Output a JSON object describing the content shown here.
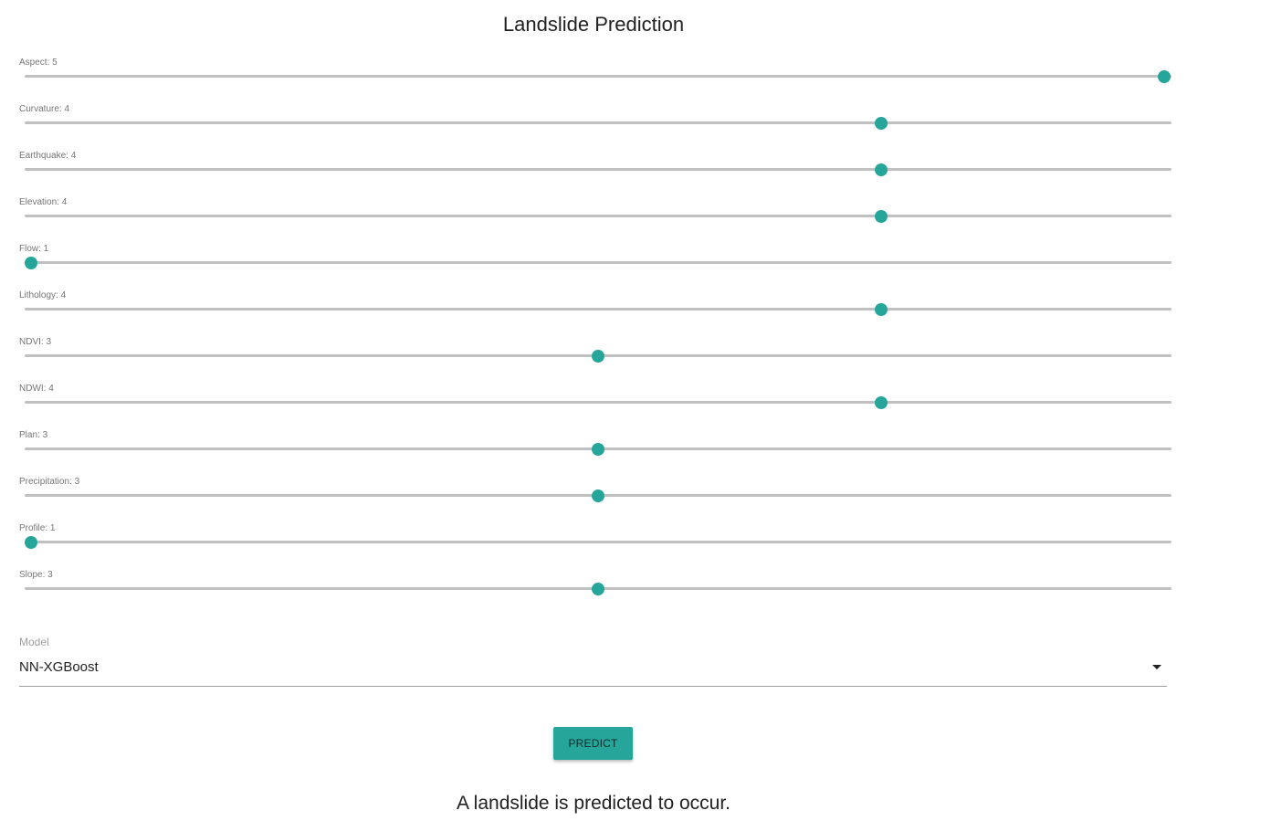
{
  "title": "Landslide Prediction",
  "slider_min": 1,
  "slider_max": 5,
  "sliders": [
    {
      "label": "Aspect: 5",
      "value": 5
    },
    {
      "label": "Curvature: 4",
      "value": 4
    },
    {
      "label": "Earthquake: 4",
      "value": 4
    },
    {
      "label": "Elevation: 4",
      "value": 4
    },
    {
      "label": "Flow: 1",
      "value": 1
    },
    {
      "label": "Lithology: 4",
      "value": 4
    },
    {
      "label": "NDVI: 3",
      "value": 3
    },
    {
      "label": "NDWI: 4",
      "value": 4
    },
    {
      "label": "Plan: 3",
      "value": 3
    },
    {
      "label": "Precipitation: 3",
      "value": 3
    },
    {
      "label": "Profile: 1",
      "value": 1
    },
    {
      "label": "Slope: 3",
      "value": 3
    }
  ],
  "model": {
    "label": "Model",
    "selected": "NN-XGBoost"
  },
  "predict_label": "PREDICT",
  "result": "A landslide is predicted to occur.",
  "colors": {
    "accent": "#26a69a",
    "track": "#c0c0c0"
  }
}
